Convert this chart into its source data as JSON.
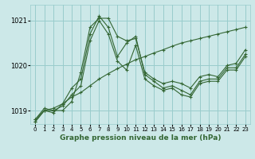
{
  "xlabel": "Graphe pression niveau de la mer (hPa)",
  "background_color": "#cce8e8",
  "grid_color": "#99cccc",
  "line_color": "#336633",
  "ylim": [
    1018.7,
    1021.35
  ],
  "xlim": [
    -0.5,
    23.5
  ],
  "yticks": [
    1019,
    1020,
    1021
  ],
  "xticks": [
    0,
    1,
    2,
    3,
    4,
    5,
    6,
    7,
    8,
    9,
    10,
    11,
    12,
    13,
    14,
    15,
    16,
    17,
    18,
    19,
    20,
    21,
    22,
    23
  ],
  "series": [
    [
      1018.8,
      1019.05,
      1019.0,
      1019.0,
      1019.2,
      1019.85,
      1020.85,
      1021.05,
      1021.05,
      1020.65,
      1020.55,
      1020.6,
      1019.85,
      1019.7,
      1019.6,
      1019.65,
      1019.6,
      1019.5,
      1019.75,
      1019.8,
      1019.75,
      1020.0,
      1020.05,
      1020.35
    ],
    [
      1018.8,
      1019.0,
      1018.95,
      1019.15,
      1019.5,
      1019.7,
      1020.7,
      1021.1,
      1020.85,
      1020.2,
      1020.5,
      1020.65,
      1019.8,
      1019.65,
      1019.5,
      1019.55,
      1019.45,
      1019.35,
      1019.65,
      1019.7,
      1019.7,
      1019.95,
      1019.95,
      1020.25
    ],
    [
      1018.75,
      1019.0,
      1019.0,
      1019.1,
      1019.35,
      1019.55,
      1020.55,
      1021.0,
      1020.7,
      1020.1,
      1019.9,
      1020.45,
      1019.7,
      1019.55,
      1019.45,
      1019.5,
      1019.35,
      1019.3,
      1019.6,
      1019.65,
      1019.65,
      1019.9,
      1019.9,
      1020.2
    ],
    [
      1018.75,
      1019.0,
      1019.05,
      1019.15,
      1019.3,
      1019.4,
      1019.55,
      1019.7,
      1019.82,
      1019.93,
      1020.03,
      1020.13,
      1020.2,
      1020.28,
      1020.35,
      1020.43,
      1020.5,
      1020.55,
      1020.6,
      1020.65,
      1020.7,
      1020.75,
      1020.8,
      1020.85
    ]
  ]
}
